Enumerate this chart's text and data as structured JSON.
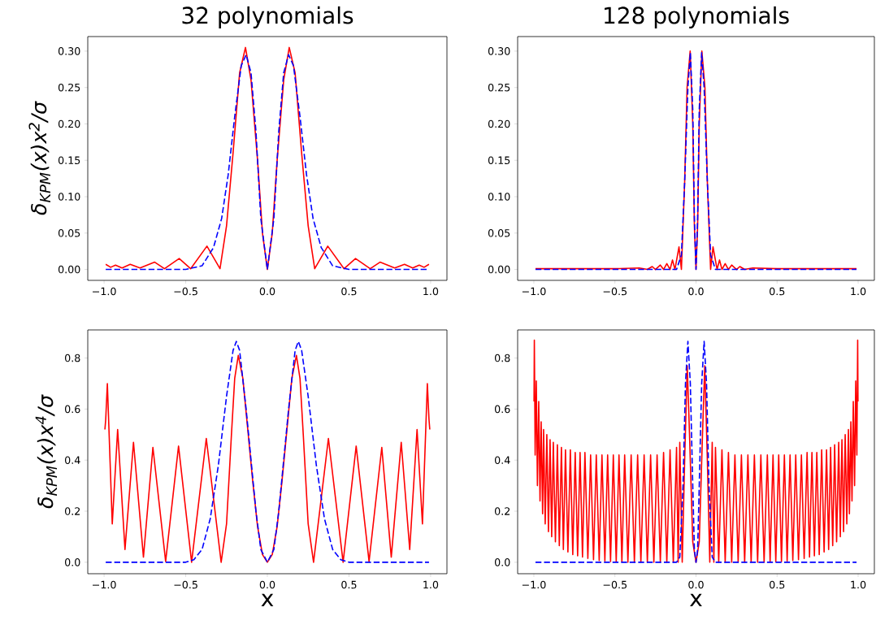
{
  "chart_data": [
    {
      "type": "line",
      "title": "32 polynomials",
      "ylabel": "δ$_{KPM}$(x)x$^{2}$/σ",
      "xlim": [
        -1.1,
        1.1
      ],
      "ylim": [
        -0.015,
        0.32
      ],
      "xticks": [
        {
          "value": -1,
          "label": "−1.0"
        },
        {
          "value": -0.5,
          "label": "−0.5"
        },
        {
          "value": 0,
          "label": "0.0"
        },
        {
          "value": 0.5,
          "label": "0.5"
        },
        {
          "value": 1,
          "label": "1.0"
        }
      ],
      "yticks": [
        {
          "value": 0,
          "label": "0.00"
        },
        {
          "value": 0.05,
          "label": "0.05"
        },
        {
          "value": 0.1,
          "label": "0.10"
        },
        {
          "value": 0.15,
          "label": "0.15"
        },
        {
          "value": 0.2,
          "label": "0.20"
        },
        {
          "value": 0.25,
          "label": "0.25"
        },
        {
          "value": 0.3,
          "label": "0.30"
        }
      ],
      "series": [
        {
          "color": "#ff0000",
          "line_style": "solid",
          "x": [
            -0.99,
            -0.96,
            -0.93,
            -0.89,
            -0.84,
            -0.78,
            -0.69,
            -0.63,
            -0.54,
            -0.47,
            -0.37,
            -0.29,
            -0.25,
            -0.21,
            -0.17,
            -0.134,
            -0.1,
            -0.06,
            -0.03,
            0,
            0.03,
            0.06,
            0.1,
            0.134,
            0.17,
            0.21,
            0.25,
            0.29,
            0.37,
            0.47,
            0.54,
            0.63,
            0.69,
            0.78,
            0.84,
            0.89,
            0.93,
            0.96,
            0.99
          ],
          "values": [
            0.007,
            0.003,
            0.006,
            0.002,
            0.007,
            0.002,
            0.01,
            0.001,
            0.015,
            0.001,
            0.032,
            0.001,
            0.06,
            0.16,
            0.27,
            0.305,
            0.26,
            0.15,
            0.05,
            0,
            0.05,
            0.15,
            0.26,
            0.305,
            0.27,
            0.16,
            0.06,
            0.001,
            0.032,
            0.001,
            0.015,
            0.001,
            0.01,
            0.002,
            0.007,
            0.002,
            0.006,
            0.003,
            0.007
          ]
        },
        {
          "color": "#0000ff",
          "line_style": "dashed",
          "x": [
            -0.99,
            -0.5,
            -0.4,
            -0.33,
            -0.28,
            -0.24,
            -0.2,
            -0.16,
            -0.13,
            -0.1,
            -0.07,
            -0.04,
            0,
            0.04,
            0.07,
            0.1,
            0.13,
            0.16,
            0.2,
            0.24,
            0.28,
            0.33,
            0.4,
            0.5,
            0.99
          ],
          "values": [
            0,
            0,
            0.005,
            0.03,
            0.07,
            0.13,
            0.21,
            0.28,
            0.295,
            0.27,
            0.19,
            0.07,
            0,
            0.07,
            0.19,
            0.27,
            0.295,
            0.28,
            0.21,
            0.13,
            0.07,
            0.03,
            0.005,
            0,
            0
          ]
        }
      ]
    },
    {
      "type": "line",
      "title": "128 polynomials",
      "xlim": [
        -1.1,
        1.1
      ],
      "ylim": [
        -0.015,
        0.32
      ],
      "xticks": [
        {
          "value": -1,
          "label": "−1.0"
        },
        {
          "value": -0.5,
          "label": "−0.5"
        },
        {
          "value": 0,
          "label": "0.0"
        },
        {
          "value": 0.5,
          "label": "0.5"
        },
        {
          "value": 1,
          "label": "1.0"
        }
      ],
      "yticks": [
        {
          "value": 0,
          "label": "0.00"
        },
        {
          "value": 0.05,
          "label": "0.05"
        },
        {
          "value": 0.1,
          "label": "0.10"
        },
        {
          "value": 0.15,
          "label": "0.15"
        },
        {
          "value": 0.2,
          "label": "0.20"
        },
        {
          "value": 0.25,
          "label": "0.25"
        },
        {
          "value": 0.3,
          "label": "0.30"
        }
      ],
      "series": [
        {
          "color": "#ff0000",
          "line_style": "solid",
          "x": [
            -0.99,
            -0.5,
            -0.35,
            -0.3,
            -0.27,
            -0.25,
            -0.22,
            -0.2,
            -0.18,
            -0.16,
            -0.145,
            -0.13,
            -0.105,
            -0.09,
            -0.07,
            -0.055,
            -0.036,
            -0.02,
            -0.01,
            0,
            0.01,
            0.02,
            0.036,
            0.055,
            0.07,
            0.09,
            0.105,
            0.13,
            0.145,
            0.16,
            0.18,
            0.2,
            0.22,
            0.25,
            0.27,
            0.3,
            0.35,
            0.5,
            0.99
          ],
          "values": [
            0.001,
            0.001,
            0.002,
            0,
            0.004,
            0,
            0.006,
            0,
            0.008,
            0,
            0.013,
            0,
            0.031,
            0,
            0.12,
            0.25,
            0.3,
            0.2,
            0.06,
            0,
            0.06,
            0.2,
            0.3,
            0.25,
            0.12,
            0,
            0.031,
            0,
            0.013,
            0,
            0.008,
            0,
            0.006,
            0,
            0.004,
            0,
            0.002,
            0.001,
            0.001
          ]
        },
        {
          "color": "#0000ff",
          "line_style": "dashed",
          "x": [
            -0.99,
            -0.12,
            -0.09,
            -0.07,
            -0.05,
            -0.035,
            -0.02,
            -0.01,
            0,
            0.01,
            0.02,
            0.035,
            0.05,
            0.07,
            0.09,
            0.12,
            0.99
          ],
          "values": [
            0,
            0,
            0.02,
            0.12,
            0.25,
            0.298,
            0.22,
            0.07,
            0,
            0.07,
            0.22,
            0.298,
            0.25,
            0.12,
            0.02,
            0,
            0
          ]
        }
      ]
    },
    {
      "type": "line",
      "xlabel": "x",
      "ylabel": "δ$_{KPM}$(x)x$^{4}$/σ",
      "xlim": [
        -1.1,
        1.1
      ],
      "ylim": [
        -0.045,
        0.91
      ],
      "xticks": [
        {
          "value": -1,
          "label": "−1.0"
        },
        {
          "value": -0.5,
          "label": "−0.5"
        },
        {
          "value": 0,
          "label": "0.0"
        },
        {
          "value": 0.5,
          "label": "0.5"
        },
        {
          "value": 1,
          "label": "1.0"
        }
      ],
      "yticks": [
        {
          "value": 0,
          "label": "0.0"
        },
        {
          "value": 0.2,
          "label": "0.2"
        },
        {
          "value": 0.4,
          "label": "0.4"
        },
        {
          "value": 0.6,
          "label": "0.6"
        },
        {
          "value": 0.8,
          "label": "0.8"
        }
      ],
      "series": [
        {
          "color": "#ff0000",
          "line_style": "solid",
          "x": [
            -0.995,
            -0.99,
            -0.98,
            -0.95,
            -0.917,
            -0.872,
            -0.82,
            -0.759,
            -0.701,
            -0.623,
            -0.544,
            -0.464,
            -0.374,
            -0.283,
            -0.25,
            -0.22,
            -0.2,
            -0.178,
            -0.15,
            -0.12,
            -0.09,
            -0.06,
            -0.03,
            0,
            0.03,
            0.06,
            0.09,
            0.12,
            0.15,
            0.178,
            0.2,
            0.22,
            0.25,
            0.283,
            0.374,
            0.464,
            0.544,
            0.623,
            0.701,
            0.759,
            0.82,
            0.872,
            0.917,
            0.95,
            0.98,
            0.99,
            0.995
          ],
          "values": [
            0.52,
            0.56,
            0.7,
            0.15,
            0.52,
            0.05,
            0.47,
            0.02,
            0.45,
            0.003,
            0.455,
            0,
            0.485,
            0,
            0.15,
            0.5,
            0.72,
            0.81,
            0.72,
            0.52,
            0.32,
            0.14,
            0.03,
            0,
            0.03,
            0.14,
            0.32,
            0.52,
            0.72,
            0.81,
            0.72,
            0.5,
            0.15,
            0,
            0.485,
            0,
            0.455,
            0.003,
            0.45,
            0.02,
            0.47,
            0.05,
            0.52,
            0.15,
            0.7,
            0.56,
            0.52
          ]
        },
        {
          "color": "#0000ff",
          "line_style": "dashed",
          "x": [
            -0.99,
            -0.5,
            -0.45,
            -0.4,
            -0.35,
            -0.3,
            -0.25,
            -0.21,
            -0.19,
            -0.17,
            -0.13,
            -0.1,
            -0.07,
            -0.04,
            0,
            0.04,
            0.07,
            0.1,
            0.13,
            0.17,
            0.19,
            0.21,
            0.25,
            0.3,
            0.35,
            0.4,
            0.45,
            0.5,
            0.99
          ],
          "values": [
            0,
            0,
            0.01,
            0.05,
            0.17,
            0.38,
            0.65,
            0.83,
            0.865,
            0.83,
            0.6,
            0.4,
            0.2,
            0.05,
            0,
            0.05,
            0.2,
            0.4,
            0.6,
            0.83,
            0.865,
            0.83,
            0.65,
            0.38,
            0.17,
            0.05,
            0.01,
            0,
            0
          ]
        }
      ]
    },
    {
      "type": "line",
      "xlabel": "x",
      "xlim": [
        -1.1,
        1.1
      ],
      "ylim": [
        -0.045,
        0.91
      ],
      "xticks": [
        {
          "value": -1,
          "label": "−1.0"
        },
        {
          "value": -0.5,
          "label": "−0.5"
        },
        {
          "value": 0,
          "label": "0.0"
        },
        {
          "value": 0.5,
          "label": "0.5"
        },
        {
          "value": 1,
          "label": "1.0"
        }
      ],
      "yticks": [
        {
          "value": 0,
          "label": "0.0"
        },
        {
          "value": 0.2,
          "label": "0.2"
        },
        {
          "value": 0.4,
          "label": "0.4"
        },
        {
          "value": 0.6,
          "label": "0.6"
        },
        {
          "value": 0.8,
          "label": "0.8"
        }
      ],
      "series": [
        {
          "color": "#ff0000",
          "line_style": "solid",
          "x": [
            -0.999,
            -0.997,
            -0.992,
            -0.985,
            -0.978,
            -0.97,
            -0.962,
            -0.955,
            -0.946,
            -0.94,
            -0.93,
            -0.92,
            -0.91,
            -0.9,
            -0.89,
            -0.88,
            -0.867,
            -0.855,
            -0.843,
            -0.83,
            -0.818,
            -0.805,
            -0.79,
            -0.775,
            -0.76,
            -0.745,
            -0.73,
            -0.715,
            -0.7,
            -0.685,
            -0.667,
            -0.65,
            -0.632,
            -0.615,
            -0.597,
            -0.58,
            -0.562,
            -0.545,
            -0.527,
            -0.51,
            -0.492,
            -0.475,
            -0.457,
            -0.44,
            -0.42,
            -0.4,
            -0.38,
            -0.36,
            -0.34,
            -0.32,
            -0.3,
            -0.28,
            -0.26,
            -0.24,
            -0.22,
            -0.2,
            -0.18,
            -0.16,
            -0.14,
            -0.12,
            -0.11,
            -0.1,
            -0.085,
            -0.07,
            -0.054,
            -0.04,
            -0.02,
            0,
            0.02,
            0.04,
            0.054,
            0.07,
            0.085,
            0.1,
            0.11,
            0.12,
            0.14,
            0.16,
            0.18,
            0.2,
            0.22,
            0.24,
            0.26,
            0.28,
            0.3,
            0.32,
            0.34,
            0.36,
            0.38,
            0.4,
            0.42,
            0.44,
            0.457,
            0.475,
            0.492,
            0.51,
            0.527,
            0.545,
            0.562,
            0.58,
            0.597,
            0.615,
            0.632,
            0.65,
            0.667,
            0.685,
            0.7,
            0.715,
            0.73,
            0.745,
            0.76,
            0.775,
            0.79,
            0.805,
            0.818,
            0.83,
            0.843,
            0.855,
            0.867,
            0.88,
            0.89,
            0.9,
            0.91,
            0.92,
            0.93,
            0.94,
            0.946,
            0.955,
            0.962,
            0.97,
            0.978,
            0.985,
            0.992,
            0.997,
            0.999
          ],
          "values": [
            0.63,
            0.87,
            0.42,
            0.71,
            0.3,
            0.63,
            0.24,
            0.55,
            0.19,
            0.52,
            0.15,
            0.5,
            0.12,
            0.48,
            0.1,
            0.47,
            0.08,
            0.46,
            0.065,
            0.45,
            0.05,
            0.44,
            0.04,
            0.44,
            0.03,
            0.43,
            0.025,
            0.43,
            0.02,
            0.43,
            0.015,
            0.42,
            0.01,
            0.42,
            0.007,
            0.42,
            0.005,
            0.42,
            0.003,
            0.42,
            0.002,
            0.42,
            0.001,
            0.42,
            0,
            0.42,
            0,
            0.42,
            0,
            0.42,
            0,
            0.42,
            0,
            0.42,
            0,
            0.43,
            0,
            0.44,
            0,
            0.45,
            0,
            0.47,
            0,
            0.4,
            0.77,
            0.5,
            0.08,
            0,
            0.08,
            0.5,
            0.77,
            0.4,
            0,
            0.47,
            0,
            0.45,
            0,
            0.44,
            0,
            0.43,
            0,
            0.42,
            0,
            0.42,
            0,
            0.42,
            0,
            0.42,
            0,
            0.42,
            0,
            0.42,
            0.001,
            0.42,
            0.002,
            0.42,
            0.003,
            0.42,
            0.005,
            0.42,
            0.007,
            0.42,
            0.01,
            0.42,
            0.015,
            0.43,
            0.02,
            0.43,
            0.025,
            0.43,
            0.03,
            0.44,
            0.04,
            0.44,
            0.05,
            0.45,
            0.065,
            0.46,
            0.08,
            0.47,
            0.1,
            0.48,
            0.12,
            0.5,
            0.15,
            0.52,
            0.19,
            0.55,
            0.24,
            0.63,
            0.3,
            0.71,
            0.42,
            0.87,
            0.63
          ]
        },
        {
          "color": "#0000ff",
          "line_style": "dashed",
          "x": [
            -0.99,
            -0.12,
            -0.1,
            -0.08,
            -0.065,
            -0.05,
            -0.035,
            -0.02,
            -0.01,
            0,
            0.01,
            0.02,
            0.035,
            0.05,
            0.065,
            0.08,
            0.1,
            0.12,
            0.99
          ],
          "values": [
            0,
            0,
            0.02,
            0.3,
            0.7,
            0.865,
            0.7,
            0.3,
            0.05,
            0,
            0.05,
            0.3,
            0.7,
            0.865,
            0.7,
            0.3,
            0.02,
            0,
            0
          ]
        }
      ]
    }
  ]
}
